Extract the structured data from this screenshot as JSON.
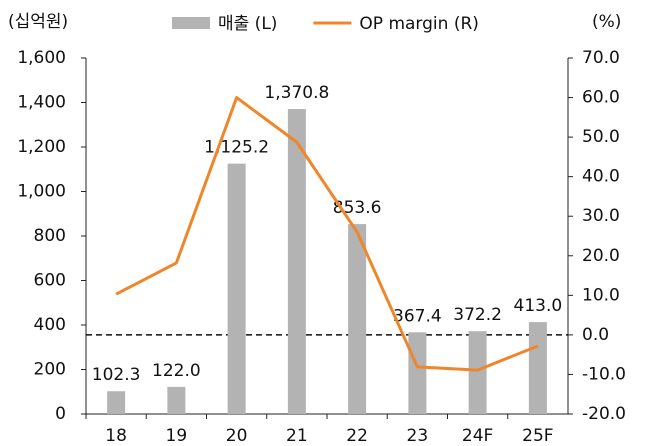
{
  "chart_data": {
    "type": "bar_line",
    "y_label": "(십억원)",
    "y2_label": "(%)",
    "categories": [
      "18",
      "19",
      "20",
      "21",
      "22",
      "23",
      "24F",
      "25F"
    ],
    "series": [
      {
        "name": "매출 (L)",
        "type": "bar",
        "color": "#b3b3b3",
        "axis": "y",
        "values": [
          102.3,
          122.0,
          1125.2,
          1370.8,
          853.6,
          367.4,
          372.2,
          413.0
        ],
        "value_labels": [
          "102.3",
          "122.0",
          "1,125.2",
          "1,370.8",
          "853.6",
          "367.4",
          "372.2",
          "413.0"
        ]
      },
      {
        "name": "OP margin (R)",
        "type": "line",
        "color": "#f0862a",
        "axis": "y2",
        "values": [
          10.3,
          18.2,
          60.0,
          48.7,
          26.0,
          -8.1,
          -8.9,
          -2.8
        ]
      }
    ],
    "ylim": [
      0,
      1600
    ],
    "yticks": [
      0,
      200,
      400,
      600,
      800,
      {
        "value": 1000,
        "label": "1,000"
      },
      {
        "value": 1200,
        "label": "1,200"
      },
      {
        "value": 1400,
        "label": "1,400"
      },
      {
        "value": 1600,
        "label": "1,600"
      }
    ],
    "y2lim": [
      -20,
      70
    ],
    "y2ticks": [
      {
        "value": -20,
        "label": "-20.0"
      },
      {
        "value": -10,
        "label": "-10.0"
      },
      {
        "value": 0,
        "label": "0.0"
      },
      {
        "value": 10,
        "label": "10.0"
      },
      {
        "value": 20,
        "label": "20.0"
      },
      {
        "value": 30,
        "label": "30.0"
      },
      {
        "value": 40,
        "label": "40.0"
      },
      {
        "value": 50,
        "label": "50.0"
      },
      {
        "value": 60,
        "label": "60.0"
      },
      {
        "value": 70,
        "label": "70.0"
      }
    ],
    "reference_line": {
      "axis": "y2",
      "value": 0
    },
    "legend": "top"
  }
}
